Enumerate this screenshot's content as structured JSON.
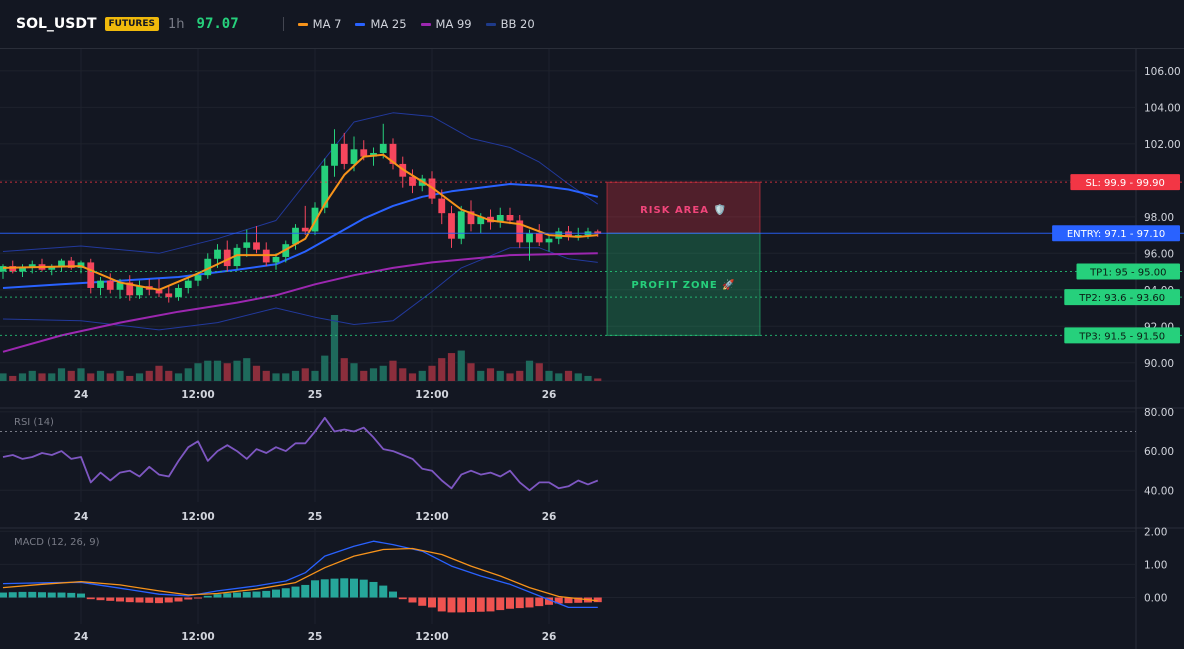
{
  "header": {
    "symbol": "SOL_USDT",
    "badge": "FUTURES",
    "timeframe": "1h",
    "price": "97.07",
    "indicators": [
      {
        "label": "MA 7",
        "color": "#f7931a"
      },
      {
        "label": "MA 25",
        "color": "#2962ff"
      },
      {
        "label": "MA 99",
        "color": "#9c27b0"
      },
      {
        "label": "BB 20",
        "color": "#1e3a8a"
      }
    ]
  },
  "colors": {
    "up": "#26d07c",
    "down": "#f6465d",
    "volUp": "#1e6a5c",
    "volDown": "#8b2e3c",
    "ma7": "#f7931a",
    "ma25": "#2962ff",
    "ma99": "#9c27b0",
    "bb": "#22399c",
    "rsi": "#7e57c2",
    "macd": "#2962ff",
    "signal": "#f7931a",
    "histUp": "#26a69a",
    "histDown": "#ef5350",
    "sl": "#f23645",
    "entry": "#2962ff",
    "tp": "#26d07c"
  },
  "chart_data": [
    {
      "type": "candlestick",
      "name": "price",
      "ylim": [
        89,
        107.2
      ],
      "yticks": [
        90,
        92,
        94,
        96,
        98,
        100,
        102,
        104,
        106
      ],
      "ytick_labels": [
        "90.00",
        "92.00",
        "94.00",
        "96.00",
        "98.00",
        "100.00",
        "102.00",
        "104.00",
        "106.00"
      ],
      "x_labels": [
        {
          "i": 8,
          "label": "24"
        },
        {
          "i": 20,
          "label": "12:00"
        },
        {
          "i": 32,
          "label": "25"
        },
        {
          "i": 44,
          "label": "12:00"
        },
        {
          "i": 56,
          "label": "26"
        }
      ],
      "bar_count": 62,
      "candles": [
        [
          95.0,
          95.4,
          94.6,
          95.3
        ],
        [
          95.3,
          95.6,
          94.9,
          95.0
        ],
        [
          95.0,
          95.4,
          94.7,
          95.2
        ],
        [
          95.2,
          95.6,
          94.9,
          95.4
        ],
        [
          95.4,
          95.7,
          95.0,
          95.1
        ],
        [
          95.1,
          95.4,
          94.8,
          95.3
        ],
        [
          95.3,
          95.7,
          95.0,
          95.6
        ],
        [
          95.6,
          95.8,
          95.1,
          95.2
        ],
        [
          95.2,
          95.6,
          94.9,
          95.5
        ],
        [
          95.5,
          95.7,
          93.8,
          94.1
        ],
        [
          94.1,
          94.7,
          93.7,
          94.5
        ],
        [
          94.5,
          94.9,
          93.8,
          94.0
        ],
        [
          94.0,
          94.6,
          93.5,
          94.4
        ],
        [
          94.4,
          94.8,
          93.4,
          93.7
        ],
        [
          93.7,
          94.5,
          93.5,
          94.2
        ],
        [
          94.2,
          94.6,
          93.7,
          94.0
        ],
        [
          94.0,
          94.6,
          93.6,
          93.8
        ],
        [
          93.8,
          94.2,
          93.3,
          93.6
        ],
        [
          93.6,
          94.3,
          93.4,
          94.1
        ],
        [
          94.1,
          94.7,
          93.8,
          94.5
        ],
        [
          94.5,
          95.0,
          94.2,
          94.8
        ],
        [
          94.8,
          96.0,
          94.6,
          95.7
        ],
        [
          95.7,
          96.5,
          95.2,
          96.2
        ],
        [
          96.2,
          96.7,
          95.0,
          95.3
        ],
        [
          95.3,
          96.5,
          95.1,
          96.3
        ],
        [
          96.3,
          97.3,
          95.8,
          96.6
        ],
        [
          96.6,
          97.5,
          96.0,
          96.2
        ],
        [
          96.2,
          96.6,
          95.3,
          95.5
        ],
        [
          95.5,
          96.0,
          95.1,
          95.8
        ],
        [
          95.8,
          96.7,
          95.5,
          96.5
        ],
        [
          96.5,
          97.6,
          96.2,
          97.4
        ],
        [
          97.4,
          98.6,
          97.0,
          97.2
        ],
        [
          97.2,
          98.8,
          97.0,
          98.5
        ],
        [
          98.5,
          101.2,
          98.2,
          100.8
        ],
        [
          100.8,
          102.8,
          100.2,
          102.0
        ],
        [
          102.0,
          102.6,
          100.6,
          100.9
        ],
        [
          100.9,
          102.4,
          100.5,
          101.7
        ],
        [
          101.7,
          102.2,
          101.1,
          101.3
        ],
        [
          101.3,
          101.8,
          100.8,
          101.5
        ],
        [
          101.5,
          103.1,
          101.2,
          102.0
        ],
        [
          102.0,
          102.3,
          100.6,
          100.9
        ],
        [
          100.9,
          101.3,
          99.6,
          100.2
        ],
        [
          100.2,
          100.6,
          99.3,
          99.7
        ],
        [
          99.7,
          100.3,
          99.4,
          100.1
        ],
        [
          100.1,
          100.5,
          98.7,
          99.0
        ],
        [
          99.0,
          99.5,
          97.6,
          98.2
        ],
        [
          98.2,
          98.6,
          96.3,
          96.8
        ],
        [
          96.8,
          98.6,
          96.5,
          98.3
        ],
        [
          98.3,
          98.9,
          97.2,
          97.6
        ],
        [
          97.6,
          98.2,
          97.1,
          98.0
        ],
        [
          98.0,
          98.4,
          97.3,
          97.7
        ],
        [
          97.7,
          98.5,
          97.4,
          98.1
        ],
        [
          98.1,
          98.5,
          97.6,
          97.8
        ],
        [
          97.8,
          98.1,
          96.3,
          96.6
        ],
        [
          96.6,
          97.3,
          95.6,
          97.1
        ],
        [
          97.1,
          97.6,
          96.4,
          96.6
        ],
        [
          96.6,
          97.0,
          96.1,
          96.8
        ],
        [
          96.8,
          97.4,
          96.5,
          97.2
        ],
        [
          97.2,
          97.5,
          96.7,
          96.9
        ],
        [
          96.9,
          97.4,
          96.7,
          97.0
        ],
        [
          97.0,
          97.4,
          96.8,
          97.2
        ],
        [
          97.2,
          97.3,
          96.9,
          97.07
        ]
      ],
      "volume": [
        3,
        2,
        3,
        4,
        3,
        3,
        5,
        4,
        5,
        3,
        4,
        3,
        4,
        2,
        3,
        4,
        6,
        4,
        3,
        5,
        7,
        8,
        8,
        7,
        8,
        9,
        6,
        4,
        3,
        3,
        4,
        5,
        4,
        10,
        26,
        9,
        7,
        4,
        5,
        6,
        8,
        5,
        3,
        4,
        6,
        9,
        11,
        12,
        7,
        4,
        5,
        4,
        3,
        4,
        8,
        7,
        4,
        3,
        4,
        3,
        2,
        1
      ],
      "ma7": [
        [
          0,
          95.2
        ],
        [
          8,
          95.3
        ],
        [
          12,
          94.4
        ],
        [
          16,
          94.0
        ],
        [
          20,
          94.9
        ],
        [
          24,
          95.9
        ],
        [
          28,
          95.9
        ],
        [
          31,
          96.8
        ],
        [
          33,
          98.7
        ],
        [
          35,
          100.3
        ],
        [
          37,
          101.3
        ],
        [
          39,
          101.4
        ],
        [
          41,
          100.6
        ],
        [
          44,
          99.6
        ],
        [
          47,
          98.4
        ],
        [
          50,
          97.8
        ],
        [
          53,
          97.6
        ],
        [
          56,
          97.0
        ],
        [
          59,
          96.9
        ],
        [
          61,
          97.0
        ]
      ],
      "ma25": [
        [
          0,
          94.1
        ],
        [
          6,
          94.3
        ],
        [
          12,
          94.5
        ],
        [
          18,
          94.7
        ],
        [
          24,
          95.1
        ],
        [
          28,
          95.4
        ],
        [
          31,
          96.1
        ],
        [
          34,
          97.0
        ],
        [
          37,
          97.9
        ],
        [
          40,
          98.6
        ],
        [
          43,
          99.1
        ],
        [
          46,
          99.4
        ],
        [
          49,
          99.6
        ],
        [
          52,
          99.8
        ],
        [
          55,
          99.7
        ],
        [
          58,
          99.5
        ],
        [
          61,
          99.1
        ]
      ],
      "ma99": [
        [
          0,
          90.6
        ],
        [
          6,
          91.5
        ],
        [
          12,
          92.2
        ],
        [
          18,
          92.8
        ],
        [
          24,
          93.3
        ],
        [
          28,
          93.7
        ],
        [
          32,
          94.3
        ],
        [
          36,
          94.8
        ],
        [
          40,
          95.2
        ],
        [
          44,
          95.5
        ],
        [
          48,
          95.7
        ],
        [
          52,
          95.9
        ],
        [
          56,
          95.95
        ],
        [
          61,
          96.0
        ]
      ],
      "bb_upper": [
        [
          0,
          96.1
        ],
        [
          8,
          96.4
        ],
        [
          16,
          96.0
        ],
        [
          22,
          96.8
        ],
        [
          28,
          97.8
        ],
        [
          32,
          100.5
        ],
        [
          36,
          103.2
        ],
        [
          40,
          103.7
        ],
        [
          44,
          103.5
        ],
        [
          48,
          102.3
        ],
        [
          52,
          101.8
        ],
        [
          55,
          101.0
        ],
        [
          58,
          99.8
        ],
        [
          61,
          98.7
        ]
      ],
      "bb_lower": [
        [
          0,
          92.4
        ],
        [
          8,
          92.3
        ],
        [
          16,
          91.8
        ],
        [
          22,
          92.2
        ],
        [
          28,
          93.0
        ],
        [
          32,
          92.5
        ],
        [
          36,
          92.1
        ],
        [
          40,
          92.3
        ],
        [
          44,
          93.9
        ],
        [
          47,
          95.2
        ],
        [
          52,
          96.3
        ],
        [
          55,
          96.3
        ],
        [
          58,
          95.7
        ],
        [
          61,
          95.5
        ]
      ],
      "levels": [
        {
          "key": "sl",
          "value": 99.9,
          "label": "SL: 99.9",
          "price": "99.90"
        },
        {
          "key": "entry",
          "value": 97.1,
          "label": "ENTRY: 97.1",
          "price": "97.10"
        },
        {
          "key": "tp",
          "value": 95.0,
          "label": "TP1: 95",
          "price": "95.00"
        },
        {
          "key": "tp",
          "value": 93.6,
          "label": "TP2: 93.6",
          "price": "93.60"
        },
        {
          "key": "tp",
          "value": 91.5,
          "label": "TP3: 91.5",
          "price": "91.50"
        }
      ],
      "zones": [
        {
          "label": "RISK AREA 🛡️",
          "from": 99.9,
          "to": 97.1,
          "color": "#f23645"
        },
        {
          "label": "PROFIT ZONE 🚀",
          "from": 97.1,
          "to": 91.5,
          "color": "#26d07c"
        }
      ]
    },
    {
      "type": "line",
      "name": "RSI (14)",
      "ylim": [
        34,
        82
      ],
      "yticks": [
        40,
        60,
        80
      ],
      "ytick_labels": [
        "40.00",
        "60.00",
        "80.00"
      ],
      "level": 70,
      "x_labels": [
        {
          "i": 8,
          "label": "24"
        },
        {
          "i": 20,
          "label": "12:00"
        },
        {
          "i": 32,
          "label": "25"
        },
        {
          "i": 44,
          "label": "12:00"
        },
        {
          "i": 56,
          "label": "26"
        }
      ],
      "values": [
        57,
        58,
        56,
        57,
        59,
        58,
        60,
        56,
        57,
        44,
        49,
        45,
        49,
        50,
        47,
        52,
        48,
        47,
        55,
        62,
        65,
        55,
        60,
        63,
        60,
        56,
        61,
        59,
        62,
        60,
        64,
        64,
        70,
        77,
        70,
        71,
        70,
        72,
        67,
        61,
        60,
        58,
        56,
        51,
        50,
        45,
        41,
        48,
        50,
        48,
        49,
        47,
        50,
        44,
        40,
        44,
        44,
        41,
        42,
        45,
        43,
        45
      ]
    },
    {
      "type": "line+bar",
      "name": "MACD (12, 26, 9)",
      "ylim": [
        -0.8,
        2.1
      ],
      "yticks": [
        0,
        1,
        2
      ],
      "ytick_labels": [
        "0.00",
        "1.00",
        "2.00"
      ],
      "x_labels": [
        {
          "i": 8,
          "label": "24"
        },
        {
          "i": 20,
          "label": "12:00"
        },
        {
          "i": 32,
          "label": "25"
        },
        {
          "i": 44,
          "label": "12:00"
        },
        {
          "i": 56,
          "label": "26"
        }
      ],
      "macd": [
        [
          0,
          0.42
        ],
        [
          5,
          0.45
        ],
        [
          8,
          0.46
        ],
        [
          12,
          0.28
        ],
        [
          16,
          0.1
        ],
        [
          19,
          0.05
        ],
        [
          22,
          0.2
        ],
        [
          26,
          0.35
        ],
        [
          29,
          0.5
        ],
        [
          31,
          0.75
        ],
        [
          33,
          1.25
        ],
        [
          36,
          1.55
        ],
        [
          38,
          1.7
        ],
        [
          40,
          1.6
        ],
        [
          43,
          1.4
        ],
        [
          46,
          0.95
        ],
        [
          49,
          0.65
        ],
        [
          52,
          0.4
        ],
        [
          55,
          0.05
        ],
        [
          58,
          -0.3
        ],
        [
          61,
          -0.3
        ]
      ],
      "signal": [
        [
          0,
          0.3
        ],
        [
          4,
          0.4
        ],
        [
          8,
          0.48
        ],
        [
          12,
          0.38
        ],
        [
          16,
          0.2
        ],
        [
          19,
          0.08
        ],
        [
          22,
          0.12
        ],
        [
          26,
          0.25
        ],
        [
          30,
          0.45
        ],
        [
          33,
          0.9
        ],
        [
          36,
          1.25
        ],
        [
          39,
          1.45
        ],
        [
          42,
          1.48
        ],
        [
          45,
          1.3
        ],
        [
          48,
          0.95
        ],
        [
          51,
          0.65
        ],
        [
          54,
          0.3
        ],
        [
          57,
          0.03
        ],
        [
          61,
          -0.1
        ]
      ],
      "hist": [
        0.15,
        0.16,
        0.17,
        0.17,
        0.16,
        0.15,
        0.15,
        0.14,
        0.12,
        -0.05,
        -0.08,
        -0.1,
        -0.12,
        -0.14,
        -0.15,
        -0.16,
        -0.17,
        -0.15,
        -0.12,
        -0.06,
        -0.02,
        0.05,
        0.1,
        0.13,
        0.15,
        0.17,
        0.18,
        0.2,
        0.24,
        0.28,
        0.33,
        0.38,
        0.52,
        0.55,
        0.57,
        0.58,
        0.57,
        0.54,
        0.47,
        0.36,
        0.18,
        -0.05,
        -0.15,
        -0.25,
        -0.3,
        -0.42,
        -0.45,
        -0.45,
        -0.44,
        -0.43,
        -0.42,
        -0.38,
        -0.34,
        -0.32,
        -0.3,
        -0.26,
        -0.22,
        -0.18,
        -0.17,
        -0.16,
        -0.15,
        -0.14
      ]
    }
  ]
}
